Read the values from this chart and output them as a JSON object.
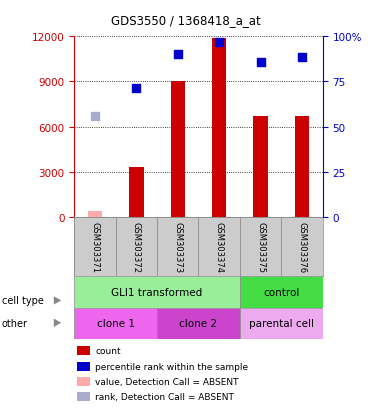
{
  "title": "GDS3550 / 1368418_a_at",
  "samples": [
    "GSM303371",
    "GSM303372",
    "GSM303373",
    "GSM303374",
    "GSM303375",
    "GSM303376"
  ],
  "counts": [
    400,
    3300,
    9000,
    11900,
    6700,
    6700
  ],
  "counts_absent": [
    400,
    null,
    null,
    null,
    null,
    null
  ],
  "percentile_ranks": [
    null,
    8600,
    10800,
    11600,
    10300,
    10600
  ],
  "percentile_ranks_absent": [
    6700,
    null,
    null,
    null,
    null,
    null
  ],
  "bar_color_present": "#cc0000",
  "bar_color_absent": "#ffaaaa",
  "dot_color_present": "#0000cc",
  "dot_color_absent": "#aaaacc",
  "ylim_left": [
    0,
    12000
  ],
  "yticks_left": [
    0,
    3000,
    6000,
    9000,
    12000
  ],
  "yticks_right": [
    0,
    25,
    50,
    75,
    100
  ],
  "ytick_labels_right": [
    "0",
    "25",
    "50",
    "75",
    "100%"
  ],
  "left_axis_color": "#cc0000",
  "right_axis_color": "#0000cc",
  "bg_color": "#ffffff",
  "cell_type_row": [
    {
      "label": "GLI1 transformed",
      "start": 0,
      "end": 4,
      "color": "#99ee99"
    },
    {
      "label": "control",
      "start": 4,
      "end": 6,
      "color": "#44dd44"
    }
  ],
  "other_row": [
    {
      "label": "clone 1",
      "start": 0,
      "end": 2,
      "color": "#ee66ee"
    },
    {
      "label": "clone 2",
      "start": 2,
      "end": 4,
      "color": "#cc44cc"
    },
    {
      "label": "parental cell",
      "start": 4,
      "end": 6,
      "color": "#eeaaee"
    }
  ],
  "legend_items": [
    {
      "color": "#cc0000",
      "label": "count"
    },
    {
      "color": "#0000cc",
      "label": "percentile rank within the sample"
    },
    {
      "color": "#ffaaaa",
      "label": "value, Detection Call = ABSENT"
    },
    {
      "color": "#aaaacc",
      "label": "rank, Detection Call = ABSENT"
    }
  ],
  "cell_type_label": "cell type",
  "other_label": "other",
  "bar_width": 0.35,
  "dot_size": 40
}
